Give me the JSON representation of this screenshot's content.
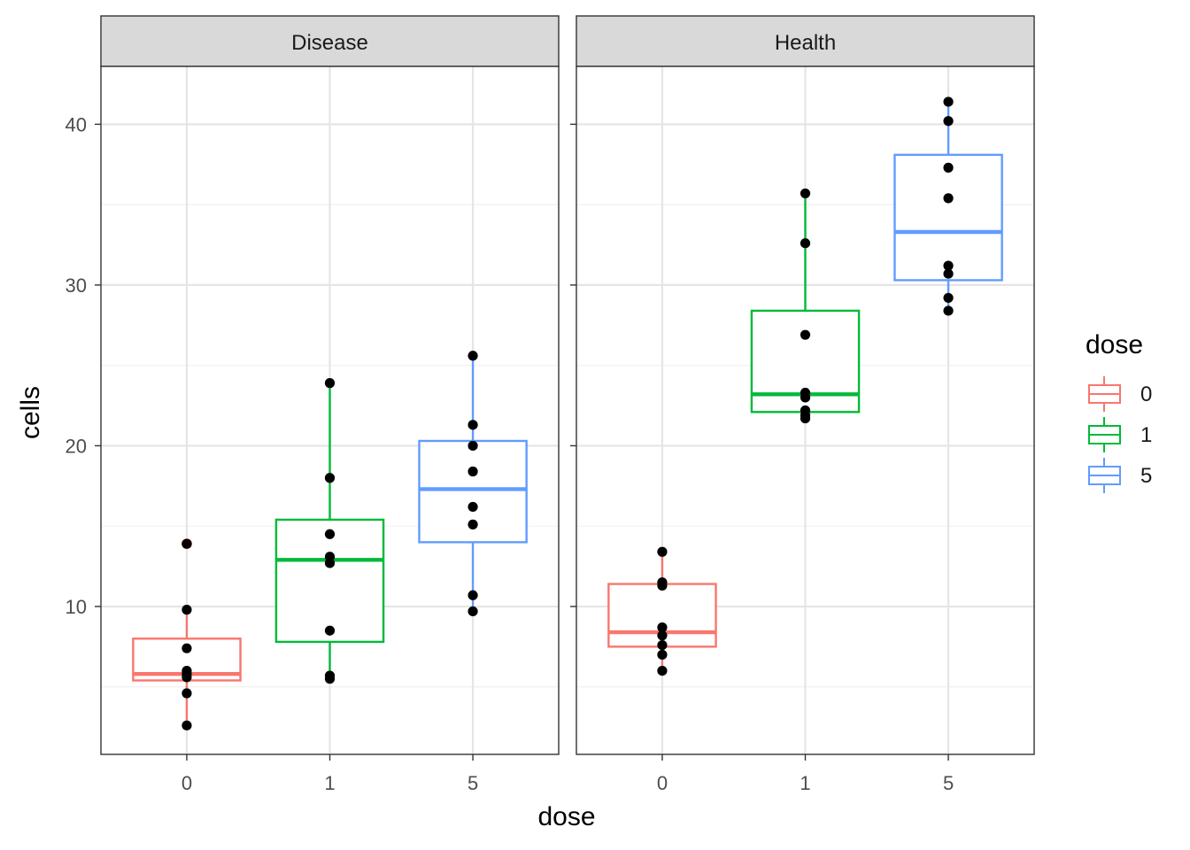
{
  "chart_data": {
    "type": "box",
    "xlabel": "dose",
    "ylabel": "cells",
    "categories": [
      "0",
      "1",
      "5"
    ],
    "ylim": [
      0.8,
      43.6
    ],
    "yticks": [
      10,
      20,
      30,
      40
    ],
    "grid": true,
    "legend": {
      "title": "dose",
      "position": "right",
      "items": [
        {
          "label": "0",
          "color": "#F8766D"
        },
        {
          "label": "1",
          "color": "#00BA38"
        },
        {
          "label": "5",
          "color": "#619CFF"
        }
      ]
    },
    "panels": [
      {
        "label": "Disease",
        "boxes": [
          {
            "dose": "0",
            "color": "#F8766D",
            "lower_whisker": 2.6,
            "q1": 5.4,
            "median": 5.8,
            "q3": 8.0,
            "upper_whisker": 9.8,
            "outliers": [
              13.9
            ],
            "points": [
              13.9,
              9.8,
              7.4,
              6.0,
              5.8,
              5.6,
              4.6,
              2.6
            ]
          },
          {
            "dose": "1",
            "color": "#00BA38",
            "lower_whisker": 5.6,
            "q1": 7.8,
            "median": 12.9,
            "q3": 15.4,
            "upper_whisker": 23.9,
            "outliers": [],
            "points": [
              23.9,
              18.0,
              14.5,
              13.1,
              12.7,
              8.5,
              5.7,
              5.5
            ]
          },
          {
            "dose": "5",
            "color": "#619CFF",
            "lower_whisker": 9.7,
            "q1": 14.0,
            "median": 17.3,
            "q3": 20.3,
            "upper_whisker": 25.6,
            "outliers": [],
            "points": [
              25.6,
              21.3,
              20.0,
              18.4,
              16.2,
              15.1,
              10.7,
              9.7
            ]
          }
        ]
      },
      {
        "label": "Health",
        "boxes": [
          {
            "dose": "0",
            "color": "#F8766D",
            "lower_whisker": 6.0,
            "q1": 7.5,
            "median": 8.4,
            "q3": 11.4,
            "upper_whisker": 13.4,
            "outliers": [],
            "points": [
              13.4,
              11.5,
              11.3,
              8.7,
              8.2,
              7.6,
              7.0,
              6.0
            ]
          },
          {
            "dose": "1",
            "color": "#00BA38",
            "lower_whisker": 21.7,
            "q1": 22.1,
            "median": 23.2,
            "q3": 28.4,
            "upper_whisker": 35.7,
            "outliers": [],
            "points": [
              35.7,
              32.6,
              26.9,
              23.3,
              23.0,
              22.2,
              21.9,
              21.7
            ]
          },
          {
            "dose": "5",
            "color": "#619CFF",
            "lower_whisker": 28.4,
            "q1": 30.3,
            "median": 33.3,
            "q3": 38.1,
            "upper_whisker": 41.4,
            "outliers": [],
            "points": [
              41.4,
              40.2,
              37.3,
              35.4,
              31.2,
              30.7,
              29.2,
              28.4
            ]
          }
        ]
      }
    ]
  }
}
